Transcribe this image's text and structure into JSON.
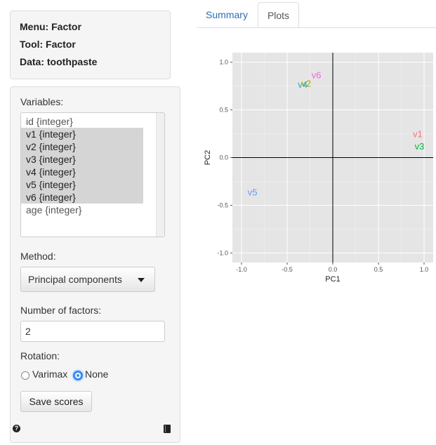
{
  "info": {
    "menu": "Menu: Factor",
    "tool": "Tool: Factor",
    "data": "Data: toothpaste"
  },
  "variables": {
    "label": "Variables:",
    "items": [
      {
        "text": "id {integer}",
        "selected": false
      },
      {
        "text": "v1 {integer}",
        "selected": true
      },
      {
        "text": "v2 {integer}",
        "selected": true
      },
      {
        "text": "v3 {integer}",
        "selected": true
      },
      {
        "text": "v4 {integer}",
        "selected": true
      },
      {
        "text": "v5 {integer}",
        "selected": true
      },
      {
        "text": "v6 {integer}",
        "selected": true
      },
      {
        "text": "age {integer}",
        "selected": false
      }
    ]
  },
  "method": {
    "label": "Method:",
    "value": "Principal components"
  },
  "nfactors": {
    "label": "Number of factors:",
    "value": "2"
  },
  "rotation": {
    "label": "Rotation:",
    "options": [
      "Varimax",
      "None"
    ],
    "selected": "None"
  },
  "save_button": "Save scores",
  "icons": {
    "help": "help-icon",
    "book": "book-icon"
  },
  "tabs": [
    "Summary",
    "Plots"
  ],
  "active_tab": "Plots",
  "colors": {
    "tab_link": "#2a6fb5",
    "radio_accent": "#3a8bf5",
    "selected_row": "#d5d5d5"
  },
  "chart_data": {
    "type": "scatter",
    "xlabel": "PC1",
    "ylabel": "PC2",
    "xlim": [
      -1.1,
      1.1
    ],
    "ylim": [
      -1.1,
      1.1
    ],
    "xticks": [
      -1.0,
      -0.5,
      0.0,
      0.5,
      1.0
    ],
    "yticks": [
      -1.0,
      -0.5,
      0.0,
      0.5,
      1.0
    ],
    "xtick_labels": [
      "-1.0",
      "-0.5",
      "0.0",
      "0.5",
      "1.0"
    ],
    "ytick_labels": [
      "-1.0",
      "-0.5",
      "0.0",
      "0.5",
      "1.0"
    ],
    "grid": true,
    "points": [
      {
        "label": "v1",
        "x": 0.93,
        "y": 0.25,
        "color": "#F8766D"
      },
      {
        "label": "v2",
        "x": -0.29,
        "y": 0.78,
        "color": "#B79F00"
      },
      {
        "label": "v3",
        "x": 0.95,
        "y": 0.12,
        "color": "#00BA38"
      },
      {
        "label": "v4",
        "x": -0.33,
        "y": 0.77,
        "color": "#00BFC4"
      },
      {
        "label": "v5",
        "x": -0.88,
        "y": -0.36,
        "color": "#619CFF"
      },
      {
        "label": "v6",
        "x": -0.18,
        "y": 0.87,
        "color": "#F564E3"
      }
    ]
  }
}
